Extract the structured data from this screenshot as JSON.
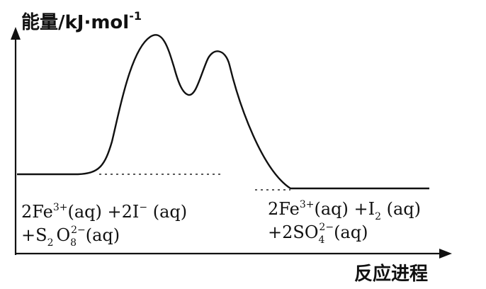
{
  "diagram": {
    "y_axis_label_main": "能量/kJ·mol",
    "y_axis_label_exp": "-1",
    "x_axis_label": "反应进程",
    "reactants": {
      "line1": {
        "a": "2Fe",
        "a_sup": "3+",
        "b": "(aq) +2I",
        "b_sup": "−",
        "c": " (aq)"
      },
      "line2": {
        "a": "+S",
        "a_sub": "2",
        "b": "O",
        "b_sub": "8",
        "b_sup": "2−",
        "c": "(aq)"
      }
    },
    "products": {
      "line1": {
        "a": "2Fe",
        "a_sup": "3+",
        "b": "(aq) +I",
        "b_sub": "2",
        "c": " (aq)"
      },
      "line2": {
        "a": "+2SO",
        "a_sub": "4",
        "a_sup": "2−",
        "b": "(aq)"
      }
    }
  }
}
